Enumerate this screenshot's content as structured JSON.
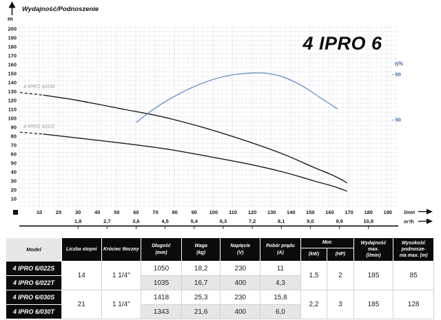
{
  "chart_data": {
    "type": "line",
    "title": "4 IPRO 6",
    "axis_top_label": "Wydajność/Podnoszenie",
    "y_unit": "m",
    "x_units": [
      "l/min",
      "m³/h"
    ],
    "eta_label": "η%",
    "xlim": [
      0,
      190
    ],
    "ylim": [
      0,
      200
    ],
    "grid": true,
    "y_ticks": [
      10,
      20,
      30,
      40,
      50,
      60,
      70,
      80,
      90,
      100,
      110,
      120,
      130,
      140,
      150,
      160,
      170,
      180,
      190,
      200
    ],
    "x_ticks_lmin": [
      10,
      20,
      30,
      40,
      50,
      60,
      70,
      80,
      90,
      100,
      110,
      120,
      130,
      140,
      150,
      160,
      170,
      180,
      190
    ],
    "x_ticks_m3h": [
      {
        "label": "1,8",
        "lmin": 30
      },
      {
        "label": "2,7",
        "lmin": 45
      },
      {
        "label": "3,6",
        "lmin": 60
      },
      {
        "label": "4,5",
        "lmin": 75
      },
      {
        "label": "5,4",
        "lmin": 90
      },
      {
        "label": "6,3",
        "lmin": 105
      },
      {
        "label": "7,2",
        "lmin": 120
      },
      {
        "label": "8,1",
        "lmin": 135
      },
      {
        "label": "9,0",
        "lmin": 150
      },
      {
        "label": "9,9",
        "lmin": 165
      },
      {
        "label": "10,8",
        "lmin": 180
      }
    ],
    "eta_ticks": [
      {
        "label": "- 60",
        "value": 60
      },
      {
        "label": "- 50",
        "value": 50
      }
    ],
    "series": [
      {
        "name": "4 IPRO 6/030",
        "color": "#1a1a1a",
        "dash_until": 12,
        "points": [
          [
            0,
            129
          ],
          [
            6,
            127.5
          ],
          [
            12,
            126
          ],
          [
            30,
            120
          ],
          [
            54,
            110
          ],
          [
            75,
            101
          ],
          [
            96,
            89
          ],
          [
            118,
            74
          ],
          [
            136,
            60
          ],
          [
            152,
            45
          ],
          [
            162,
            36
          ],
          [
            169,
            28
          ]
        ]
      },
      {
        "name": "4 IPRO 6/022",
        "color": "#1a1a1a",
        "dash_until": 12,
        "points": [
          [
            0,
            84.5
          ],
          [
            6,
            83.5
          ],
          [
            12,
            82.5
          ],
          [
            30,
            78
          ],
          [
            54,
            72
          ],
          [
            75,
            66
          ],
          [
            96,
            58
          ],
          [
            118,
            49
          ],
          [
            136,
            40
          ],
          [
            152,
            30
          ],
          [
            162,
            24
          ],
          [
            169,
            18.5
          ]
        ]
      }
    ],
    "efficiency_series": {
      "name": "η",
      "color": "#5b86c2",
      "points": [
        [
          60,
          49.4
        ],
        [
          70,
          52.6
        ],
        [
          80,
          55.2
        ],
        [
          90,
          57.3
        ],
        [
          100,
          58.9
        ],
        [
          110,
          59.9
        ],
        [
          120,
          60.3
        ],
        [
          128,
          60.2
        ],
        [
          136,
          59.4
        ],
        [
          146,
          57.4
        ],
        [
          155,
          54.9
        ],
        [
          164,
          52.4
        ]
      ]
    }
  },
  "table": {
    "headers": {
      "model": "Model",
      "stages": "Liczba stopni",
      "outlet": "Króciec tłoczny",
      "length": "Długość",
      "length_unit": "(mm)",
      "weight": "Waga",
      "weight_unit": "(kg)",
      "voltage": "Napięcie",
      "voltage_unit": "(V)",
      "current": "Pobór prądu",
      "current_unit": "(A)",
      "power": "Moc",
      "power_kw": "(kW)",
      "power_hp": "(HP)",
      "max_flow": "Wydajność max.",
      "max_flow_unit": "(l/min)",
      "max_head_1": "Wysokość podnosze-",
      "max_head_2": "nia max. (m)"
    },
    "rows": [
      {
        "model": "4 IPRO 6/022S",
        "stages": "14",
        "outlet": "1 1/4\"",
        "length": "1050",
        "weight": "18,2",
        "voltage": "230",
        "current": "11",
        "kw": "1,5",
        "hp": "2",
        "flow": "185",
        "head": "85"
      },
      {
        "model": "4 IPRO 6/022T",
        "length": "1035",
        "weight": "16,7",
        "voltage": "400",
        "current": "4,3"
      },
      {
        "model": "4 IPRO 6/030S",
        "stages": "21",
        "outlet": "1 1/4\"",
        "length": "1418",
        "weight": "25,3",
        "voltage": "230",
        "current": "15,8",
        "kw": "2,2",
        "hp": "3",
        "flow": "185",
        "head": "128"
      },
      {
        "model": "4 IPRO 6/030T",
        "length": "1343",
        "weight": "21,6",
        "voltage": "400",
        "current": "6,0"
      }
    ]
  }
}
